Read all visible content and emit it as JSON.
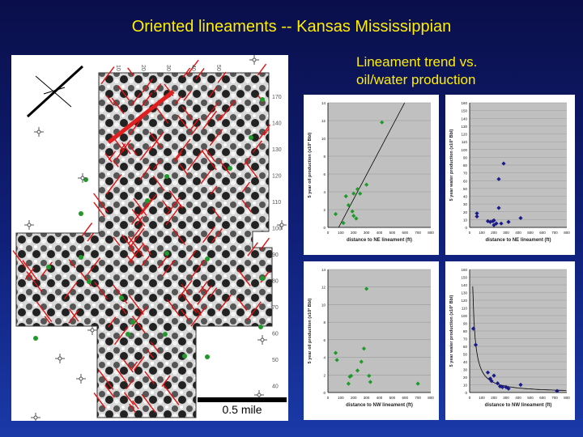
{
  "slide": {
    "title": "Oriented lineaments -- Kansas Mississippian",
    "subtitle_line1": "Lineament trend vs.",
    "subtitle_line2": "oil/water production"
  },
  "map": {
    "scale_label": "0.5 mile",
    "grid_labels_top": [
      "10",
      "20",
      "30",
      "40",
      "50"
    ],
    "grid_labels_right": [
      "170",
      "140",
      "130",
      "120",
      "110",
      "100",
      "90",
      "80",
      "70",
      "60",
      "50",
      "40"
    ],
    "colors": {
      "lineament": "#e01010",
      "well": "#1f9a2a",
      "trend": "#e02020"
    }
  },
  "chart_data": [
    {
      "type": "scatter",
      "xlabel": "distance to NE lineament (ft)",
      "ylabel": "5 year oil production (x10³ Bbl)",
      "xlim": [
        0,
        800
      ],
      "ylim": [
        0,
        14
      ],
      "xticks": [
        "0",
        "100",
        "200",
        "300",
        "400",
        "500",
        "600",
        "700",
        "800"
      ],
      "yticks": [
        "0",
        "2",
        "4",
        "6",
        "8",
        "10",
        "12",
        "14"
      ],
      "color": "#1f9a2a",
      "fit": "linear",
      "x": [
        60,
        120,
        140,
        160,
        190,
        200,
        200,
        220,
        230,
        250,
        300,
        420
      ],
      "y": [
        1.5,
        0.5,
        3.5,
        2.5,
        1.8,
        1.3,
        3.8,
        1.0,
        4.3,
        3.8,
        4.8,
        11.8
      ]
    },
    {
      "type": "scatter",
      "xlabel": "distance to NE lineament (ft)",
      "ylabel": "5 year water production (x10³ Bbl)",
      "xlim": [
        0,
        800
      ],
      "ylim": [
        0,
        160
      ],
      "xticks": [
        "0",
        "100",
        "200",
        "300",
        "400",
        "500",
        "600",
        "700",
        "800"
      ],
      "yticks": [
        "0",
        "10",
        "20",
        "30",
        "40",
        "50",
        "60",
        "70",
        "80",
        "90",
        "100",
        "110",
        "120",
        "130",
        "140",
        "150",
        "160"
      ],
      "color": "#1a1a8a",
      "fit": "none",
      "x": [
        60,
        60,
        150,
        170,
        190,
        200,
        200,
        220,
        240,
        240,
        260,
        280,
        320,
        420
      ],
      "y": [
        18,
        14,
        8,
        7,
        8,
        3,
        9,
        5,
        25,
        62,
        5,
        82,
        7,
        12
      ]
    },
    {
      "type": "scatter",
      "xlabel": "distance to NW lineament (ft)",
      "ylabel": "5 year oil production (x10³ Bbl)",
      "xlim": [
        0,
        800
      ],
      "ylim": [
        0,
        14
      ],
      "xticks": [
        "0",
        "100",
        "200",
        "300",
        "400",
        "500",
        "600",
        "700",
        "800"
      ],
      "yticks": [
        "0",
        "2",
        "4",
        "6",
        "8",
        "10",
        "12",
        "14"
      ],
      "color": "#1f9a2a",
      "fit": "none",
      "x": [
        60,
        70,
        160,
        170,
        180,
        230,
        260,
        280,
        300,
        320,
        330,
        700
      ],
      "y": [
        4.5,
        3.7,
        1.0,
        1.8,
        1.9,
        2.5,
        3.5,
        5.0,
        11.8,
        1.9,
        1.2,
        1.0
      ]
    },
    {
      "type": "scatter",
      "xlabel": "distance to NW lineament (ft)",
      "ylabel": "5 year water production (x10³ Bbl)",
      "xlim": [
        0,
        800
      ],
      "ylim": [
        0,
        160
      ],
      "xticks": [
        "0",
        "100",
        "200",
        "300",
        "400",
        "500",
        "600",
        "700",
        "800"
      ],
      "yticks": [
        "0",
        "10",
        "20",
        "30",
        "40",
        "50",
        "60",
        "70",
        "80",
        "90",
        "100",
        "110",
        "120",
        "130",
        "140",
        "150",
        "160"
      ],
      "color": "#1a1a8a",
      "fit": "power",
      "x": [
        30,
        50,
        150,
        170,
        180,
        200,
        230,
        250,
        270,
        300,
        320,
        420,
        720
      ],
      "y": [
        83,
        62,
        26,
        18,
        15,
        22,
        12,
        8,
        7,
        7,
        5,
        10,
        2
      ]
    }
  ]
}
